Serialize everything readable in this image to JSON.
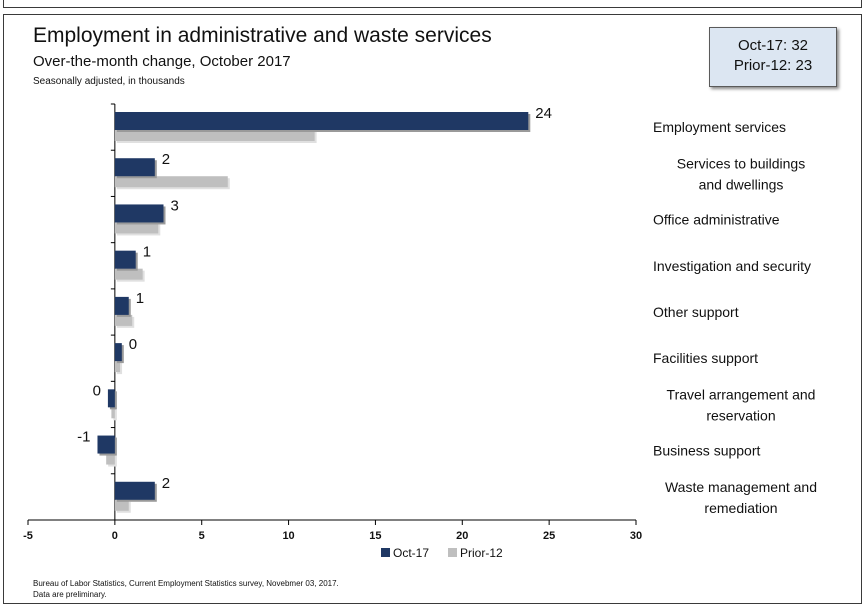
{
  "header": {
    "title": "Employment in administrative and waste services",
    "subtitle": "Over-the-month change, October 2017",
    "unit_note": "Seasonally adjusted, in thousands"
  },
  "callout": {
    "line1": "Oct-17: 32",
    "line2": "Prior-12: 23"
  },
  "footer": {
    "source": "Bureau of Labor Statistics, Current Employment Statistics survey, Novebmer 03, 2017.",
    "note": "Data are preliminary."
  },
  "colors": {
    "oct17": "#1f3864",
    "prior12": "#bfbfbf",
    "callout_bg": "#dce6f2"
  },
  "chart_data": {
    "type": "bar",
    "orientation": "horizontal",
    "categories": [
      [
        "Employment services"
      ],
      [
        "Services to buildings",
        "and dwellings"
      ],
      [
        "Office administrative"
      ],
      [
        "Investigation and security"
      ],
      [
        "Other support"
      ],
      [
        "Facilities support"
      ],
      [
        "Travel arrangement and",
        "reservation"
      ],
      [
        "Business support"
      ],
      [
        "Waste management and",
        "remediation"
      ]
    ],
    "series": [
      {
        "name": "Oct-17",
        "values": [
          23.8,
          2.3,
          2.8,
          1.2,
          0.8,
          0.4,
          -0.4,
          -1.0,
          2.3
        ],
        "labels": [
          "24",
          "2",
          "3",
          "1",
          "1",
          "0",
          "0",
          "-1",
          "2"
        ]
      },
      {
        "name": "Prior-12",
        "values": [
          11.5,
          6.5,
          2.5,
          1.6,
          1.0,
          0.3,
          -0.2,
          -0.5,
          0.8
        ]
      }
    ],
    "xlim": [
      -5,
      30
    ],
    "xticks": [
      -5,
      0,
      5,
      10,
      15,
      20,
      25,
      30
    ],
    "legend": "bottom-center"
  }
}
